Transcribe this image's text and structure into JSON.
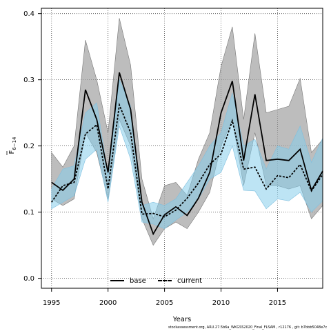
{
  "chart_data": {
    "type": "line",
    "title": "",
    "xlabel": "Years",
    "ylabel": "F̅₆₋₁₄",
    "ylabel_main": "F",
    "ylabel_sub": "6−14",
    "xlim": [
      1994.1,
      2019
    ],
    "ylim": [
      -0.015,
      0.408
    ],
    "x_ticks": [
      1995,
      2000,
      2005,
      2010,
      2015
    ],
    "y_ticks": [
      0.0,
      0.1,
      0.2,
      0.3,
      0.4
    ],
    "y_tick_labels": [
      "0.0",
      "0.1",
      "0.2",
      "0.3",
      "0.4"
    ],
    "grid": true,
    "legend_position": "bottom-center",
    "x": [
      1995,
      1996,
      1997,
      1998,
      1999,
      2000,
      2001,
      2002,
      2003,
      2004,
      2005,
      2006,
      2007,
      2008,
      2009,
      2010,
      2011,
      2012,
      2013,
      2014,
      2015,
      2016,
      2017,
      2018,
      2019
    ],
    "series": [
      {
        "name": "base",
        "color": "#000000",
        "band_color": "#999999",
        "values": [
          0.145,
          0.133,
          0.15,
          0.285,
          0.24,
          0.16,
          0.311,
          0.255,
          0.115,
          0.067,
          0.096,
          0.108,
          0.095,
          0.121,
          0.16,
          0.25,
          0.298,
          0.178,
          0.278,
          0.178,
          0.18,
          0.178,
          0.195,
          0.133,
          0.162
        ],
        "lower": [
          0.12,
          0.11,
          0.12,
          0.22,
          0.19,
          0.12,
          0.24,
          0.2,
          0.09,
          0.05,
          0.075,
          0.085,
          0.075,
          0.1,
          0.13,
          0.2,
          0.24,
          0.14,
          0.22,
          0.14,
          0.14,
          0.135,
          0.14,
          0.09,
          0.11
        ],
        "upper": [
          0.19,
          0.168,
          0.2,
          0.36,
          0.3,
          0.22,
          0.393,
          0.322,
          0.15,
          0.09,
          0.14,
          0.145,
          0.125,
          0.18,
          0.22,
          0.32,
          0.38,
          0.24,
          0.37,
          0.25,
          0.255,
          0.26,
          0.302,
          0.19,
          0.21
        ]
      },
      {
        "name": "current",
        "color": "#000000",
        "band_color": "#87ceeb",
        "values": [
          0.115,
          0.14,
          0.145,
          0.218,
          0.232,
          0.135,
          0.262,
          0.22,
          0.097,
          0.098,
          0.093,
          0.103,
          0.121,
          0.144,
          0.172,
          0.188,
          0.238,
          0.165,
          0.168,
          0.135,
          0.155,
          0.152,
          0.172,
          0.132,
          0.157
        ],
        "lower": [
          0.105,
          0.115,
          0.125,
          0.18,
          0.195,
          0.115,
          0.23,
          0.18,
          0.085,
          0.082,
          0.075,
          0.088,
          0.1,
          0.12,
          0.15,
          0.16,
          0.2,
          0.133,
          0.132,
          0.105,
          0.12,
          0.117,
          0.13,
          0.1,
          0.117
        ],
        "upper": [
          0.135,
          0.165,
          0.17,
          0.25,
          0.265,
          0.155,
          0.3,
          0.26,
          0.11,
          0.115,
          0.11,
          0.12,
          0.145,
          0.17,
          0.2,
          0.22,
          0.28,
          0.2,
          0.21,
          0.165,
          0.2,
          0.195,
          0.23,
          0.175,
          0.212
        ]
      }
    ]
  },
  "footnote": "stockassessment.org, ARU.27.5b6a_WKGSS2020_Final_FLSAM , r12176 , git: b7bbb5048e7c"
}
